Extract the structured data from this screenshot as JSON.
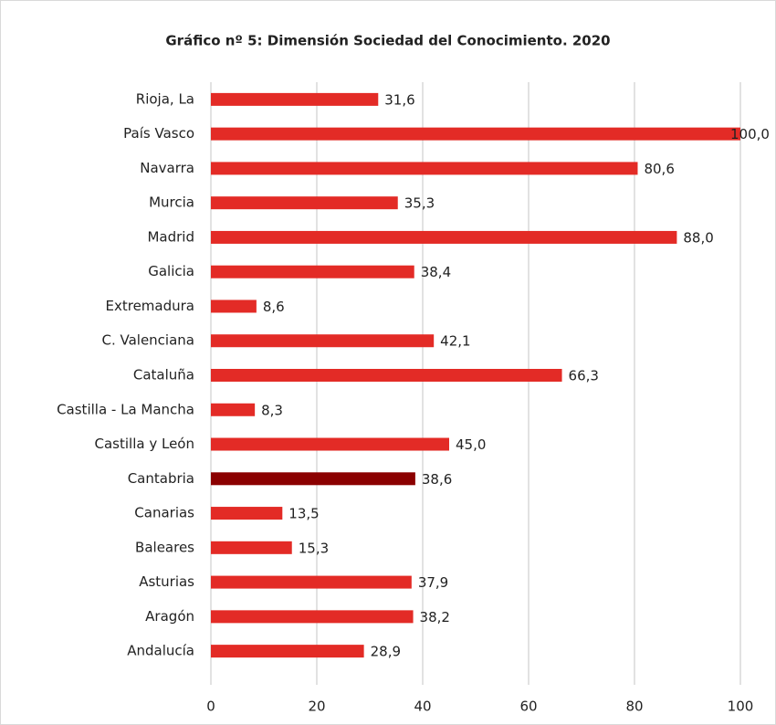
{
  "chart_data": {
    "type": "barh",
    "title": "Gráfico nº 5: Dimensión Sociedad del Conocimiento. 2020",
    "categories": [
      "Rioja, La",
      "País Vasco",
      "Navarra",
      "Murcia",
      "Madrid",
      "Galicia",
      "Extremadura",
      "C. Valenciana",
      "Cataluña",
      "Castilla - La Mancha",
      "Castilla y León",
      "Cantabria",
      "Canarias",
      "Baleares",
      "Asturias",
      "Aragón",
      "Andalucía"
    ],
    "values": [
      31.6,
      100.0,
      80.6,
      35.3,
      88.0,
      38.4,
      8.6,
      42.1,
      66.3,
      8.3,
      45.0,
      38.6,
      13.5,
      15.3,
      37.9,
      38.2,
      28.9
    ],
    "value_labels": [
      "31,6",
      "100,0",
      "80,6",
      "35,3",
      "88,0",
      "38,4",
      "8,6",
      "42,1",
      "66,3",
      "8,3",
      "45,0",
      "38,6",
      "13,5",
      "15,3",
      "37,9",
      "38,2",
      "28,9"
    ],
    "colors": [
      "#e32b26",
      "#e32b26",
      "#e32b26",
      "#e32b26",
      "#e32b26",
      "#e32b26",
      "#e32b26",
      "#e32b26",
      "#e32b26",
      "#e32b26",
      "#e32b26",
      "#8b0000",
      "#e32b26",
      "#e32b26",
      "#e32b26",
      "#e32b26",
      "#e32b26"
    ],
    "xlim": [
      0,
      100
    ],
    "xticks": [
      0,
      20,
      40,
      60,
      80,
      100
    ],
    "grid": true
  }
}
